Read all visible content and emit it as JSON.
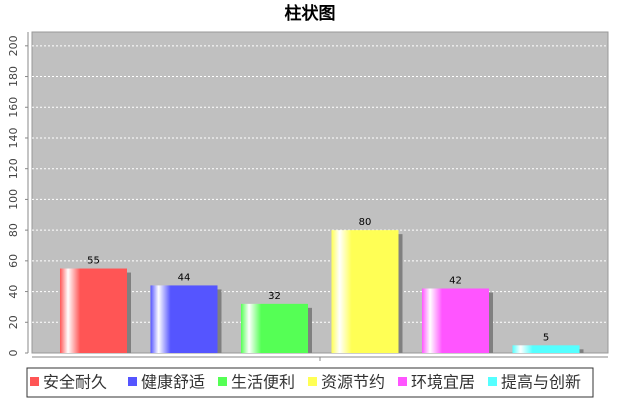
{
  "chart_data": {
    "type": "bar",
    "title": "柱状图",
    "categories": [
      "安全耐久",
      "健康舒适",
      "生活便利",
      "资源节约",
      "环境宜居",
      "提高与创新"
    ],
    "values": [
      55,
      44,
      32,
      80,
      42,
      5
    ],
    "colors": [
      "#ff5555",
      "#5555ff",
      "#55ff55",
      "#ffff55",
      "#ff55ff",
      "#55ffff"
    ],
    "ylim": [
      0,
      209
    ],
    "yticks": [
      0,
      20,
      40,
      60,
      80,
      100,
      120,
      140,
      160,
      180,
      200
    ],
    "grid": true
  }
}
